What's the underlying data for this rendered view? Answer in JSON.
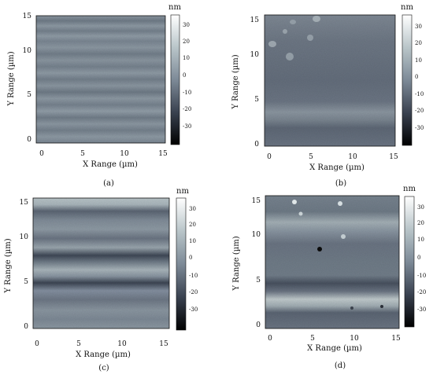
{
  "figure": {
    "panels": [
      {
        "id": "a",
        "caption": "(a)",
        "xlabel": "X Range (µm)",
        "ylabel": "Y Range (µm)",
        "xticks": [
          "0",
          "5",
          "10",
          "15"
        ],
        "yticks": [
          "0",
          "5",
          "10",
          "15"
        ],
        "colorbar": {
          "unit": "nm",
          "ticks": [
            "30",
            "20",
            "10",
            "0",
            "-10",
            "-20",
            "-30"
          ]
        }
      },
      {
        "id": "b",
        "caption": "(b)",
        "xlabel": "X Range (µm)",
        "ylabel": "Y Range (µm)",
        "xticks": [
          "0",
          "5",
          "10",
          "15"
        ],
        "yticks": [
          "0",
          "5",
          "10",
          "15"
        ],
        "colorbar": {
          "unit": "nm",
          "ticks": [
            "30",
            "20",
            "10",
            "0",
            "-10",
            "-20",
            "-30"
          ]
        }
      },
      {
        "id": "c",
        "caption": "(c)",
        "xlabel": "X Range (µm)",
        "ylabel": "Y Range (µm)",
        "xticks": [
          "0",
          "5",
          "10",
          "15"
        ],
        "yticks": [
          "0",
          "5",
          "10",
          "15"
        ],
        "colorbar": {
          "unit": "nm",
          "ticks": [
            "30",
            "20",
            "10",
            "0",
            "-10",
            "-20",
            "-30"
          ]
        }
      },
      {
        "id": "d",
        "caption": "(d)",
        "xlabel": "X Range (µm)",
        "ylabel": "Y Range (µm)",
        "xticks": [
          "0",
          "5",
          "10",
          "15"
        ],
        "yticks": [
          "0",
          "5",
          "10",
          "15"
        ],
        "colorbar": {
          "unit": "nm",
          "ticks": [
            "30",
            "20",
            "10",
            "0",
            "-10",
            "-20",
            "-30"
          ]
        }
      }
    ],
    "colors": {
      "colormap": [
        "#000000",
        "#3a4250",
        "#7d8a97",
        "#b9c5c9",
        "#ffffff"
      ],
      "axis": "#111111"
    }
  }
}
